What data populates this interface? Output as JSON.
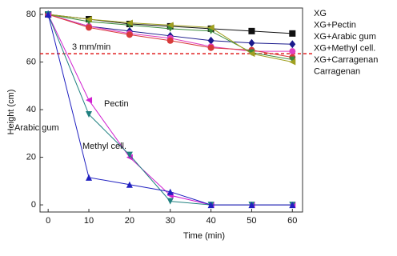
{
  "chart_data": {
    "type": "line",
    "x_label": "Time (min)",
    "y_label": "Height (cm)",
    "x": [
      0,
      10,
      20,
      30,
      40,
      50,
      60
    ],
    "xlim": [
      -2,
      62.5
    ],
    "xticks": [
      0,
      10,
      20,
      30,
      40,
      50,
      60
    ],
    "ylim": [
      -3,
      82.7
    ],
    "yticks": [
      0,
      20,
      40,
      60,
      80
    ],
    "hline": {
      "value": 63.5,
      "label": "3 mm/min",
      "color": "#e02020"
    },
    "series": [
      {
        "name": "XG",
        "color": "#111111",
        "marker": "square",
        "values": [
          80,
          78,
          76,
          75,
          74,
          73,
          72
        ]
      },
      {
        "name": "XG+Pectin",
        "color": "#1a1a8c",
        "marker": "diamond",
        "values": [
          80,
          75,
          73,
          71,
          69,
          68,
          67.5
        ]
      },
      {
        "name": "XG+Arabic gum",
        "color": "#e040c0",
        "marker": "circle",
        "values": [
          80,
          75,
          72,
          70,
          66.5,
          64.5,
          64.5
        ]
      },
      {
        "name": "XG+Methyl cell.",
        "color": "#d83a3a",
        "marker": "circle",
        "values": [
          80,
          74.5,
          71.5,
          69,
          66,
          65,
          62
        ]
      },
      {
        "name": "XG+Carragenan",
        "color": "#3a8a3a",
        "marker": "triangle-down",
        "values": [
          80,
          77,
          75.5,
          74,
          73,
          64,
          61
        ]
      },
      {
        "name": "Carragenan",
        "color": "#a0a020",
        "marker": "triangle-left",
        "values": [
          80,
          78,
          76.5,
          75.5,
          74.5,
          63.5,
          60
        ]
      },
      {
        "name": "Pectin",
        "color": "#d020d0",
        "marker": "triangle-left",
        "values": [
          80,
          44,
          20,
          4,
          0,
          0,
          0
        ]
      },
      {
        "name": "Methyl cell.",
        "color": "#208080",
        "marker": "triangle-down",
        "values": [
          80,
          38,
          21,
          1.5,
          0,
          0,
          0
        ]
      },
      {
        "name": "Arabic gum",
        "color": "#2020c0",
        "marker": "triangle-up",
        "values": [
          80,
          11.5,
          8.5,
          5.5,
          0,
          0,
          0
        ]
      }
    ],
    "legend": [
      "chart_data.series.0.name",
      "chart_data.series.1.name",
      "chart_data.series.2.name",
      "chart_data.series.3.name",
      "chart_data.series.4.name",
      "chart_data.series.5.name"
    ],
    "annotations": [
      {
        "text": "Pectin",
        "series": 6
      },
      {
        "text": "Methyl cell.",
        "series": 7
      },
      {
        "text": "Arabic gum",
        "series": 8
      }
    ]
  }
}
